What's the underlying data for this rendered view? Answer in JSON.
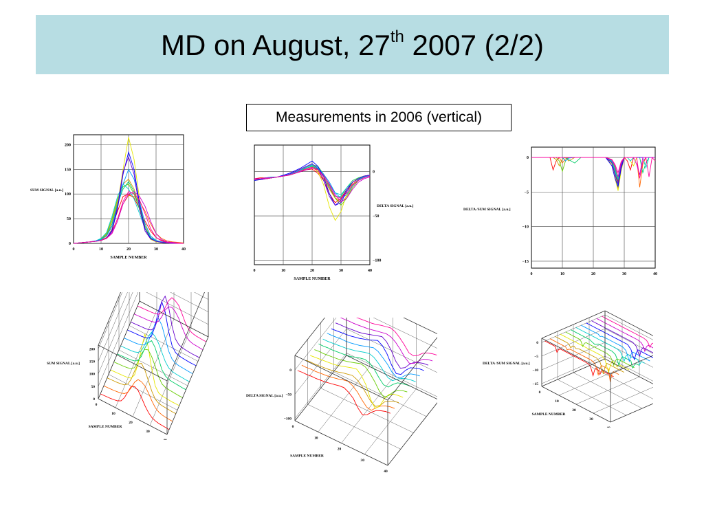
{
  "slide": {
    "title_main": "MD on August, 27",
    "title_sup": "th",
    "title_tail": " 2007 (2/2)",
    "caption": "Measurements in 2006 (vertical)"
  },
  "colors": [
    "#ff0000",
    "#ff6600",
    "#cc9900",
    "#e6e600",
    "#66cc00",
    "#00cc66",
    "#00cccc",
    "#0099ff",
    "#0000ff",
    "#6600cc",
    "#cc00cc",
    "#ff0099"
  ],
  "chart_data": [
    {
      "id": "sum-2d",
      "type": "line",
      "xlabel": "SAMPLE NUMBER",
      "ylabel": "SUM SIGNAL [a.u.]",
      "xlim": [
        0,
        40
      ],
      "ylim": [
        0,
        220
      ],
      "xticks": [
        "0",
        "10",
        "20",
        "30",
        "40"
      ],
      "yticks": [
        "0",
        "50",
        "100",
        "150",
        "200"
      ],
      "x": [
        0,
        2,
        4,
        6,
        8,
        10,
        12,
        14,
        16,
        18,
        20,
        22,
        24,
        26,
        28,
        30,
        32,
        34,
        36,
        38,
        40
      ],
      "series": [
        {
          "values": [
            0,
            1,
            2,
            3,
            5,
            8,
            15,
            35,
            65,
            95,
            100,
            92,
            70,
            45,
            25,
            12,
            6,
            3,
            2,
            1,
            0
          ]
        },
        {
          "values": [
            0,
            1,
            2,
            3,
            5,
            7,
            12,
            25,
            50,
            80,
            97,
            95,
            85,
            65,
            40,
            20,
            10,
            5,
            3,
            2,
            1
          ]
        },
        {
          "values": [
            0,
            1,
            2,
            3,
            5,
            8,
            18,
            45,
            85,
            120,
            130,
            110,
            75,
            40,
            15,
            6,
            3,
            2,
            1,
            0,
            0
          ]
        },
        {
          "values": [
            0,
            1,
            2,
            3,
            4,
            6,
            10,
            30,
            80,
            150,
            215,
            170,
            90,
            30,
            8,
            3,
            2,
            1,
            0,
            0,
            0
          ]
        },
        {
          "values": [
            0,
            1,
            2,
            3,
            5,
            9,
            20,
            50,
            90,
            115,
            120,
            100,
            70,
            35,
            12,
            5,
            3,
            2,
            1,
            0,
            0
          ]
        },
        {
          "values": [
            0,
            1,
            2,
            3,
            5,
            8,
            16,
            40,
            80,
            110,
            125,
            105,
            68,
            30,
            12,
            5,
            3,
            2,
            1,
            0,
            0
          ]
        },
        {
          "values": [
            0,
            1,
            2,
            3,
            5,
            10,
            22,
            55,
            95,
            120,
            110,
            90,
            60,
            30,
            12,
            5,
            3,
            2,
            1,
            0,
            0
          ]
        },
        {
          "values": [
            0,
            1,
            2,
            3,
            5,
            8,
            15,
            35,
            75,
            120,
            150,
            130,
            85,
            40,
            15,
            6,
            3,
            2,
            1,
            0,
            0
          ]
        },
        {
          "values": [
            0,
            1,
            2,
            3,
            4,
            6,
            10,
            25,
            70,
            140,
            185,
            150,
            80,
            30,
            10,
            4,
            2,
            1,
            0,
            0,
            0
          ]
        },
        {
          "values": [
            0,
            1,
            2,
            3,
            4,
            6,
            11,
            28,
            75,
            145,
            175,
            140,
            70,
            25,
            9,
            4,
            2,
            1,
            0,
            0,
            0
          ]
        },
        {
          "values": [
            0,
            1,
            2,
            3,
            4,
            6,
            10,
            20,
            45,
            80,
            100,
            105,
            95,
            75,
            45,
            20,
            8,
            3,
            2,
            1,
            0
          ]
        },
        {
          "values": [
            0,
            1,
            2,
            3,
            4,
            6,
            10,
            22,
            50,
            85,
            105,
            100,
            88,
            60,
            30,
            12,
            5,
            2,
            1,
            0,
            0
          ]
        }
      ]
    },
    {
      "id": "delta-2d",
      "type": "line",
      "xlabel": "SAMPLE NUMBER",
      "ylabel": "DELTA  SIGNAL [a.u.]",
      "xlim": [
        0,
        40
      ],
      "ylim": [
        -105,
        30
      ],
      "xticks": [
        "0",
        "10",
        "20",
        "30",
        "40"
      ],
      "yticks": [
        "0",
        "-50",
        "-100"
      ],
      "x": [
        0,
        2,
        4,
        6,
        8,
        10,
        12,
        14,
        16,
        18,
        20,
        22,
        24,
        26,
        28,
        30,
        32,
        34,
        36,
        38,
        40
      ],
      "series": [
        {
          "values": [
            -8,
            -7,
            -7,
            -6,
            -6,
            -5,
            -4,
            -2,
            0,
            2,
            3,
            -2,
            -10,
            -25,
            -35,
            -30,
            -20,
            -12,
            -8,
            -5,
            -4
          ]
        },
        {
          "values": [
            -8,
            -8,
            -7,
            -7,
            -6,
            -5,
            -4,
            -2,
            0,
            3,
            5,
            0,
            -8,
            -20,
            -30,
            -32,
            -22,
            -14,
            -9,
            -6,
            -5
          ]
        },
        {
          "values": [
            -9,
            -8,
            -8,
            -7,
            -6,
            -5,
            -3,
            -1,
            2,
            4,
            6,
            2,
            -6,
            -18,
            -30,
            -35,
            -28,
            -16,
            -10,
            -6,
            -4
          ]
        },
        {
          "values": [
            -10,
            -9,
            -8,
            -7,
            -6,
            -5,
            -3,
            0,
            3,
            6,
            8,
            0,
            -15,
            -40,
            -55,
            -45,
            -25,
            -12,
            -7,
            -5,
            -4
          ]
        },
        {
          "values": [
            -9,
            -8,
            -8,
            -7,
            -6,
            -5,
            -3,
            -1,
            2,
            5,
            8,
            6,
            -3,
            -15,
            -30,
            -38,
            -30,
            -18,
            -10,
            -6,
            -4
          ]
        },
        {
          "values": [
            -8,
            -8,
            -7,
            -7,
            -6,
            -5,
            -4,
            -2,
            1,
            4,
            6,
            3,
            -5,
            -18,
            -28,
            -28,
            -18,
            -10,
            -7,
            -5,
            -4
          ]
        },
        {
          "values": [
            -9,
            -9,
            -8,
            -7,
            -6,
            -5,
            -3,
            -1,
            2,
            5,
            7,
            4,
            -4,
            -14,
            -24,
            -26,
            -18,
            -12,
            -8,
            -6,
            -5
          ]
        },
        {
          "values": [
            -8,
            -8,
            -7,
            -6,
            -6,
            -5,
            -3,
            -1,
            2,
            5,
            8,
            5,
            -3,
            -12,
            -24,
            -30,
            -26,
            -16,
            -9,
            -6,
            -4
          ]
        },
        {
          "values": [
            -10,
            -9,
            -8,
            -7,
            -6,
            -4,
            -2,
            1,
            4,
            8,
            12,
            6,
            -6,
            -25,
            -38,
            -35,
            -22,
            -12,
            -8,
            -5,
            -4
          ]
        },
        {
          "values": [
            -9,
            -8,
            -8,
            -7,
            -6,
            -5,
            -3,
            0,
            3,
            6,
            9,
            3,
            -10,
            -28,
            -38,
            -32,
            -20,
            -12,
            -8,
            -5,
            -4
          ]
        },
        {
          "values": [
            -8,
            -8,
            -7,
            -7,
            -6,
            -5,
            -4,
            -2,
            0,
            2,
            4,
            2,
            -4,
            -14,
            -26,
            -34,
            -30,
            -20,
            -12,
            -8,
            -6
          ]
        },
        {
          "values": [
            -9,
            -8,
            -8,
            -7,
            -6,
            -5,
            -4,
            -2,
            1,
            3,
            5,
            2,
            -6,
            -16,
            -28,
            -30,
            -24,
            -15,
            -10,
            -7,
            -5
          ]
        }
      ]
    },
    {
      "id": "ratio-2d",
      "type": "line",
      "xlabel": "",
      "ylabel": "DELTA /SUM SIGNAL [a.u.]",
      "xlim": [
        0,
        40
      ],
      "ylim": [
        -16,
        1.5
      ],
      "xticks": [
        "0",
        "10",
        "20",
        "30",
        "40"
      ],
      "yticks": [
        "0",
        "-5",
        "-10",
        "-15"
      ],
      "x": [
        0,
        2,
        4,
        6,
        7,
        8,
        9,
        10,
        11,
        12,
        14,
        16,
        18,
        20,
        22,
        24,
        26,
        27,
        28,
        29,
        30,
        31,
        32,
        33,
        34,
        35,
        36,
        37,
        38,
        39,
        40
      ],
      "series": [
        {
          "values": [
            0,
            0,
            0,
            0,
            -1.8,
            -0.5,
            0,
            0,
            0,
            0,
            0,
            0,
            0,
            0,
            0,
            0,
            -0.3,
            -1.5,
            -3.5,
            -1,
            0,
            -0.5,
            -1.8,
            0,
            0,
            0,
            0,
            0,
            0,
            0,
            0
          ]
        },
        {
          "values": [
            0,
            0,
            0,
            0,
            0,
            0,
            0,
            -0.8,
            -0.2,
            0,
            0,
            0,
            0,
            0,
            0,
            0,
            -0.5,
            -2,
            -4,
            -1.2,
            0,
            0,
            0,
            0,
            0,
            -4.3,
            -1,
            0,
            0,
            0,
            0
          ]
        },
        {
          "values": [
            0,
            0,
            0,
            0,
            0,
            -0.3,
            -1.2,
            -0.2,
            0,
            -0.5,
            0,
            0,
            0,
            0,
            0,
            0,
            -0.8,
            -2.5,
            -4.5,
            -1.5,
            0,
            0,
            0,
            0,
            0,
            0,
            0,
            0,
            0,
            0,
            0
          ]
        },
        {
          "values": [
            0,
            0,
            0,
            0,
            0,
            0,
            0,
            0,
            0,
            0,
            0,
            0,
            0,
            0,
            0,
            0,
            -1,
            -3,
            -4.8,
            -2,
            0,
            0,
            -0.5,
            -1.2,
            0,
            0,
            0,
            0,
            0,
            0,
            0
          ]
        },
        {
          "values": [
            0,
            0,
            0,
            0,
            0,
            0,
            -0.5,
            -2,
            -0.5,
            0,
            0,
            0,
            0,
            0,
            0,
            0,
            -0.4,
            -1.5,
            -3,
            -1,
            0,
            0,
            0,
            0,
            0,
            0,
            0,
            0,
            0,
            0,
            0
          ]
        },
        {
          "values": [
            0,
            0,
            0,
            0,
            0,
            0,
            0,
            0,
            0,
            -0.3,
            -0.8,
            0,
            0,
            0,
            0,
            0,
            -0.6,
            -2,
            -3.8,
            -1.4,
            0,
            0,
            0,
            0,
            0,
            0,
            -2.2,
            -0.8,
            0,
            0,
            0
          ]
        },
        {
          "values": [
            0,
            0,
            0,
            0,
            0,
            0,
            0,
            0,
            0,
            0,
            0,
            0,
            0,
            0,
            0,
            0,
            -0.5,
            -1.8,
            -3.2,
            -1,
            0,
            0,
            -0.5,
            0,
            0,
            0,
            0,
            -1.5,
            0,
            0,
            0
          ]
        },
        {
          "values": [
            0,
            0,
            0,
            0,
            0,
            0,
            0,
            0,
            -0.5,
            -0.1,
            0,
            0,
            0,
            0,
            0,
            0,
            -0.7,
            -2.2,
            -4,
            -1.2,
            0,
            0,
            0,
            0,
            0,
            0,
            0,
            0,
            0,
            0,
            0
          ]
        },
        {
          "values": [
            0,
            0,
            0,
            0,
            0,
            0,
            0,
            0,
            0,
            0,
            0,
            0,
            0,
            0,
            0,
            0,
            -1.2,
            -3,
            -4.2,
            -1.6,
            0,
            0,
            0,
            0,
            0,
            0,
            0,
            0,
            0,
            0,
            0
          ]
        },
        {
          "values": [
            0,
            0,
            0,
            0,
            0,
            0,
            0,
            0,
            0,
            0,
            0,
            0,
            0,
            0,
            0,
            0,
            -0.8,
            -2.4,
            -3.8,
            -1.2,
            0,
            0,
            0,
            0,
            0,
            0,
            0,
            0,
            0,
            0,
            0
          ]
        },
        {
          "values": [
            0,
            0,
            0,
            0,
            0,
            0,
            0,
            0,
            0,
            0,
            0,
            0,
            0,
            0,
            0,
            0,
            -0.4,
            -1.2,
            -2.8,
            -0.8,
            0,
            0,
            0,
            0,
            -1,
            -2.5,
            0,
            0,
            0,
            0,
            0
          ]
        },
        {
          "values": [
            0,
            0,
            0,
            0,
            0,
            0,
            0,
            0,
            0,
            0,
            0,
            0,
            0,
            0,
            0,
            0,
            -0.3,
            -1,
            -2.2,
            -0.6,
            0,
            0,
            0,
            0,
            0,
            -3,
            -0.6,
            0,
            -2.8,
            0,
            -0.5
          ]
        }
      ]
    },
    {
      "id": "sum-3d",
      "type": "line",
      "xlabel": "SAMPLE NUMBER",
      "ylabel": "SUM SIGNAL [a.u.]",
      "zticks": [
        "0",
        "50",
        "100",
        "150",
        "200"
      ],
      "xticks": [
        "0",
        "10",
        "20",
        "30",
        "40"
      ]
    },
    {
      "id": "delta-3d",
      "type": "line",
      "xlabel": "SAMPLE NUMBER",
      "ylabel": "DELTA  SIGNAL [a.u.]",
      "zticks": [
        "0",
        "-50",
        "-100"
      ],
      "xticks": [
        "0",
        "10",
        "20",
        "30",
        "40"
      ]
    },
    {
      "id": "ratio-3d",
      "type": "line",
      "xlabel": "SAMPLE NUMBER",
      "ylabel": "DELTA /SUM SIGNAL [a.u.]",
      "zticks": [
        "0",
        "-5",
        "-10",
        "-15"
      ],
      "xticks": [
        "0",
        "10",
        "20",
        "30",
        "40"
      ]
    }
  ]
}
